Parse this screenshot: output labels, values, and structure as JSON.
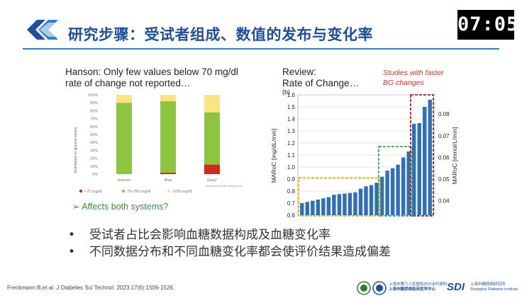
{
  "header": {
    "title": "研究步骤：受试者组成、数值的发布与变化率",
    "timer": "07:05"
  },
  "left_panel": {
    "title_line1": "Hanson: Only few values below 70 mg/dl",
    "title_line2": "rate of change not reported…",
    "ylabel": "Distribution of glucose values",
    "bullet": "Affects both systems?",
    "note": "*estimated share after categories excluded",
    "colors": {
      "green": "#8cc63f",
      "yellow": "#fde383",
      "red": "#d9251c"
    }
  },
  "right_panel": {
    "title_line1": "Review:",
    "title_line2": "Rate of Change…",
    "note_line1": "Studies with faster",
    "note_line2": "BG changes",
    "panel_label": "(b)"
  },
  "bullets": [
    "受试者占比会影响血糖数据构成及血糖变化率",
    "不同数据分布和不同血糖变化率都会使评价结果造成偏差"
  ],
  "reference": "Freckmann B,et al. J Diabetes Sci Technol. 2023.17(6):1506-1526.",
  "footer": {
    "inst1_line1": "上海市第六人民医院内分泌代谢科",
    "inst1_line2": "上海市糖尿病临床医学中心",
    "sdi": "SDI",
    "inst2_line1": "上海市糖尿病研究所",
    "inst2_line2": "Shanghai Diabetes Institute"
  },
  "chart_data": [
    {
      "type": "bar",
      "stacked": true,
      "categories": [
        "Hanson",
        "Alva",
        "Garg*"
      ],
      "ylim": [
        0,
        100
      ],
      "yticks": [
        "0%",
        "10%",
        "20%",
        "30%",
        "40%",
        "50%",
        "60%",
        "70%",
        "80%",
        "90%",
        "100%"
      ],
      "ylabel": "Distribution of glucose values",
      "series": [
        {
          "name": "<70 mg/dl",
          "color": "#d9251c",
          "values": [
            0,
            2,
            12
          ]
        },
        {
          "name": "70–250 mg/dl",
          "color": "#8cc63f",
          "values": [
            90,
            90,
            66
          ]
        },
        {
          "name": ">250 mg/dl",
          "color": "#fde383",
          "values": [
            10,
            8,
            22
          ]
        }
      ]
    },
    {
      "type": "bar",
      "ylabel": "MARoC [mg/dL/min]",
      "ylabel2": "MARoC [mmol/L/min]",
      "ylim": [
        0.6,
        1.6
      ],
      "yticks": [
        "0.6",
        "0.7",
        "0.8",
        "0.9",
        "1.0",
        "1.1",
        "1.2",
        "1.3",
        "1.4",
        "1.5",
        "1.6"
      ],
      "yticks2": [
        "0.04",
        "0.05",
        "0.06",
        "0.07",
        "0.08"
      ],
      "values": [
        0.7,
        0.71,
        0.72,
        0.73,
        0.74,
        0.75,
        0.77,
        0.775,
        0.78,
        0.785,
        0.79,
        0.82,
        0.84,
        0.85,
        0.87,
        0.92,
        0.97,
        0.99,
        1.02,
        1.08,
        1.13,
        1.36,
        1.365,
        1.5,
        1.56
      ],
      "highlight_boxes": [
        {
          "color": "#e6b800",
          "from_index": 0,
          "to_index": 14
        },
        {
          "color": "#3aa64a",
          "from_index": 15,
          "to_index": 20
        },
        {
          "color": "#a32222",
          "from_index": 21,
          "to_index": 24
        }
      ]
    }
  ]
}
